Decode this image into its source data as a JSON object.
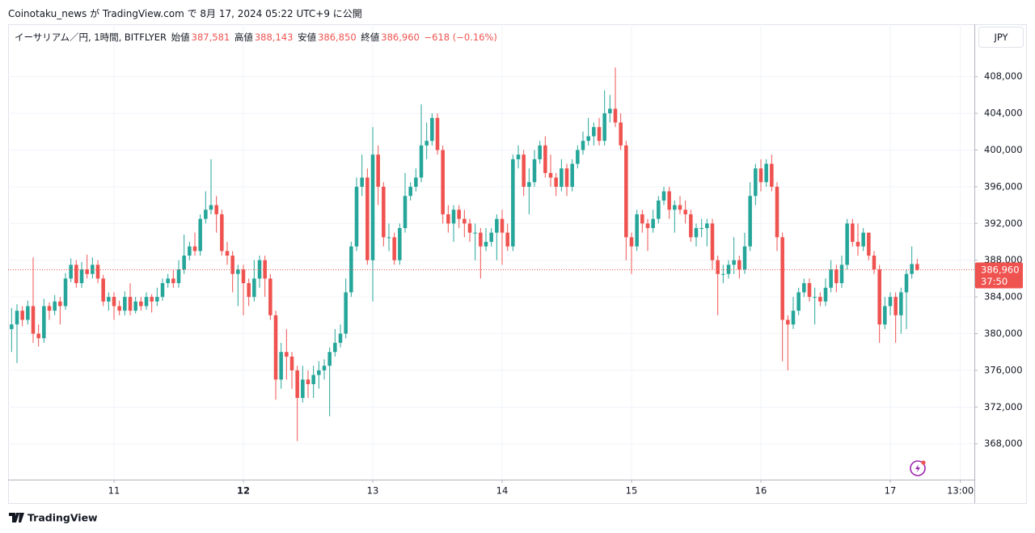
{
  "published": "Coinotaku_news が TradingView.com で 8月 17, 2024 05:22 UTC+9 に公開",
  "brand": "TradingView",
  "chart_data": {
    "type": "candlestick",
    "legend": {
      "symbol": "イーサリアム／円, 1時間, BITFLYER",
      "items": [
        {
          "label": "始値",
          "value": "387,581"
        },
        {
          "label": "高値",
          "value": "388,143"
        },
        {
          "label": "安値",
          "value": "386,850"
        },
        {
          "label": "終値",
          "value": "386,960"
        }
      ],
      "change": "−618 (−0.16%)"
    },
    "currency": "JPY",
    "last_price": 386960,
    "last_price_label": "386,960",
    "countdown": "37:50",
    "up_color": "#26a69a",
    "down_color": "#ef5350",
    "grid": true,
    "xlim": [
      4.35,
      183.6
    ],
    "xticks": [
      {
        "value": 24,
        "label": "11"
      },
      {
        "value": 48,
        "label": "12"
      },
      {
        "value": 72,
        "label": "13"
      },
      {
        "value": 96,
        "label": "14"
      },
      {
        "value": 120,
        "label": "15"
      },
      {
        "value": 144,
        "label": "16"
      },
      {
        "value": 168,
        "label": "17"
      },
      {
        "value": 181,
        "label": "13:00"
      }
    ],
    "ylim": [
      364100,
      413700
    ],
    "yticks": [
      {
        "value": 368000,
        "label": "368,000"
      },
      {
        "value": 372000,
        "label": "372,000"
      },
      {
        "value": 376000,
        "label": "376,000"
      },
      {
        "value": 380000,
        "label": "380,000"
      },
      {
        "value": 384000,
        "label": "384,000"
      },
      {
        "value": 388000,
        "label": "388,000"
      },
      {
        "value": 392000,
        "label": "392,000"
      },
      {
        "value": 396000,
        "label": "396,000"
      },
      {
        "value": 400000,
        "label": "400,000"
      },
      {
        "value": 404000,
        "label": "404,000"
      },
      {
        "value": 408000,
        "label": "408,000"
      }
    ],
    "x": [
      5,
      6,
      7,
      8,
      9,
      10,
      11,
      12,
      13,
      14,
      15,
      16,
      17,
      18,
      19,
      20,
      21,
      22,
      23,
      24,
      25,
      26,
      27,
      28,
      29,
      30,
      31,
      32,
      33,
      34,
      35,
      36,
      37,
      38,
      39,
      40,
      41,
      42,
      43,
      44,
      45,
      46,
      47,
      48,
      49,
      50,
      51,
      52,
      53,
      54,
      55,
      56,
      57,
      58,
      59,
      60,
      61,
      62,
      63,
      64,
      65,
      66,
      67,
      68,
      69,
      70,
      71,
      72,
      73,
      74,
      75,
      76,
      77,
      78,
      79,
      80,
      81,
      82,
      83,
      84,
      85,
      86,
      87,
      88,
      89,
      90,
      91,
      92,
      93,
      94,
      95,
      96,
      97,
      98,
      99,
      100,
      101,
      102,
      103,
      104,
      105,
      106,
      107,
      108,
      109,
      110,
      111,
      112,
      113,
      114,
      115,
      116,
      117,
      118,
      119,
      120,
      121,
      122,
      123,
      124,
      125,
      126,
      127,
      128,
      129,
      130,
      131,
      132,
      133,
      134,
      135,
      136,
      137,
      138,
      139,
      140,
      141,
      142,
      143,
      144,
      145,
      146,
      147,
      148,
      149,
      150,
      151,
      152,
      153,
      154,
      155,
      156,
      157,
      158,
      159,
      160,
      161,
      162,
      163,
      164,
      165,
      166,
      167,
      168,
      169,
      170,
      171,
      172,
      173
    ],
    "open": [
      380500,
      381000,
      382500,
      381500,
      383000,
      380000,
      379500,
      383000,
      382500,
      383500,
      383000,
      386000,
      387500,
      385500,
      387000,
      386500,
      387500,
      386000,
      383500,
      384000,
      383000,
      382500,
      384000,
      382500,
      383500,
      383000,
      384000,
      383500,
      384000,
      385500,
      386000,
      385500,
      387000,
      388500,
      389500,
      389000,
      392500,
      393500,
      394000,
      393000,
      389000,
      388500,
      386500,
      387000,
      385500,
      384000,
      386000,
      388000,
      386000,
      382000,
      375000,
      378000,
      377500,
      376000,
      373000,
      375000,
      374500,
      375500,
      376000,
      376500,
      378000,
      379000,
      380000,
      384500,
      389500,
      396000,
      397000,
      388000,
      399500,
      396000,
      390500,
      390500,
      388000,
      391500,
      395000,
      396000,
      397000,
      400500,
      401000,
      403500,
      400000,
      393000,
      392000,
      393500,
      392500,
      392000,
      391000,
      391000,
      389500,
      390000,
      391000,
      392500,
      391000,
      389500,
      399000,
      399500,
      396000,
      396500,
      399000,
      400500,
      397500,
      397000,
      396000,
      398000,
      396000,
      398500,
      400000,
      401000,
      401500,
      402500,
      401000,
      404000,
      404500,
      403000,
      400500,
      390500,
      389500,
      393000,
      392000,
      391500,
      392500,
      394500,
      395500,
      393500,
      394000,
      393500,
      393000,
      390500,
      391500,
      391500,
      392000,
      388000,
      386500,
      386500,
      387500,
      388000,
      387000,
      389500,
      395000,
      398000,
      396500,
      398500,
      396000,
      390500,
      381500,
      381000,
      382500,
      384500,
      385500,
      384000,
      384000,
      383500,
      385000,
      387000,
      385500,
      387500,
      392000,
      390000,
      389500,
      391000,
      388500,
      387000,
      381000,
      383000,
      384000,
      382000,
      384500,
      386500,
      387581
    ],
    "high": [
      382800,
      383200,
      383000,
      383600,
      388300,
      381000,
      383800,
      383400,
      384200,
      384000,
      386600,
      388200,
      388000,
      387800,
      388600,
      388300,
      388000,
      386400,
      384500,
      384500,
      383600,
      384600,
      385500,
      384000,
      384000,
      384500,
      384300,
      385000,
      386000,
      386500,
      387000,
      388000,
      390800,
      390000,
      391000,
      393000,
      395500,
      399000,
      395000,
      393500,
      390000,
      389000,
      387500,
      387500,
      386000,
      388000,
      388500,
      388500,
      386500,
      382500,
      379000,
      380500,
      378000,
      376500,
      376500,
      376000,
      376500,
      377000,
      377200,
      378500,
      380500,
      381000,
      386000,
      390000,
      397000,
      399500,
      398000,
      402500,
      400500,
      396500,
      392000,
      391000,
      392000,
      397500,
      396500,
      398000,
      405000,
      403000,
      404000,
      404000,
      400500,
      394000,
      394000,
      394000,
      393500,
      392500,
      392000,
      391500,
      391500,
      391500,
      393000,
      393500,
      392000,
      399500,
      400500,
      400000,
      398000,
      400000,
      401000,
      401500,
      399500,
      397500,
      399000,
      398500,
      399000,
      400500,
      402000,
      403500,
      403000,
      403500,
      406500,
      406000,
      409000,
      404000,
      401000,
      391000,
      393500,
      393500,
      392500,
      393500,
      395000,
      396000,
      396000,
      394500,
      395000,
      394500,
      393500,
      392000,
      392500,
      392500,
      392500,
      388500,
      387500,
      388000,
      390500,
      388500,
      391000,
      396500,
      398500,
      399000,
      399000,
      399500,
      396500,
      391000,
      382000,
      384000,
      385000,
      386000,
      386000,
      385000,
      384500,
      386000,
      388000,
      387500,
      388500,
      392500,
      392500,
      392000,
      391500,
      391000,
      389000,
      387500,
      384000,
      384500,
      384500,
      385000,
      387000,
      389500,
      388143
    ],
    "low": [
      378000,
      376800,
      380800,
      381000,
      379000,
      378600,
      379000,
      381500,
      382000,
      381000,
      382600,
      385600,
      385000,
      385000,
      386000,
      386000,
      385500,
      383000,
      382500,
      381500,
      382000,
      382000,
      382000,
      382200,
      382500,
      382600,
      382300,
      383000,
      383600,
      385000,
      385000,
      385000,
      386500,
      388000,
      388500,
      388500,
      392000,
      393000,
      391000,
      388500,
      387500,
      384500,
      383000,
      382000,
      383000,
      383500,
      385000,
      384000,
      381500,
      372800,
      374000,
      375000,
      374000,
      368300,
      372500,
      373000,
      373000,
      374000,
      375000,
      371000,
      377500,
      378500,
      379500,
      384000,
      389000,
      395000,
      387500,
      383500,
      394000,
      389500,
      389000,
      387500,
      387500,
      391000,
      394500,
      395500,
      396500,
      399000,
      400500,
      399500,
      392000,
      391000,
      390000,
      391500,
      390500,
      390000,
      388000,
      386000,
      389000,
      389500,
      388000,
      387500,
      389000,
      389000,
      398000,
      395000,
      393000,
      396000,
      398500,
      397000,
      396000,
      395000,
      395500,
      395000,
      395500,
      398000,
      399500,
      400500,
      400500,
      400500,
      400500,
      403000,
      402500,
      400000,
      388000,
      386500,
      389000,
      391000,
      389000,
      391000,
      392000,
      394000,
      392500,
      391000,
      393000,
      392000,
      390000,
      389500,
      390500,
      389500,
      387000,
      382000,
      385500,
      386000,
      386500,
      386000,
      386500,
      389000,
      394000,
      395500,
      396000,
      395500,
      389000,
      377000,
      376000,
      380500,
      382000,
      384000,
      383500,
      381000,
      383000,
      383000,
      384500,
      384500,
      385000,
      387000,
      389500,
      388500,
      389000,
      388000,
      386500,
      379000,
      380500,
      382000,
      379000,
      380000,
      380500,
      386000,
      386850
    ],
    "close": [
      381000,
      382500,
      381500,
      383000,
      380000,
      379500,
      383000,
      382500,
      383500,
      383000,
      386000,
      387500,
      385500,
      387000,
      386500,
      387500,
      386000,
      383500,
      384000,
      383000,
      382500,
      384000,
      382500,
      383500,
      383000,
      384000,
      383500,
      384000,
      385500,
      386000,
      385500,
      387000,
      388500,
      389500,
      389000,
      392500,
      393500,
      394000,
      393000,
      389000,
      388500,
      386500,
      387000,
      385500,
      384000,
      386000,
      388000,
      386000,
      382000,
      375000,
      378000,
      377500,
      376000,
      373000,
      375000,
      374500,
      375500,
      376000,
      376500,
      378000,
      379000,
      380000,
      384500,
      389500,
      396000,
      397000,
      388000,
      399500,
      396000,
      390500,
      390500,
      388000,
      391500,
      395000,
      396000,
      397000,
      400500,
      401000,
      403500,
      400000,
      393000,
      392000,
      393500,
      392500,
      392000,
      391000,
      391000,
      389500,
      390000,
      391000,
      392500,
      391000,
      389500,
      399000,
      399500,
      396000,
      396500,
      399000,
      400500,
      397500,
      397000,
      396000,
      398000,
      396000,
      398500,
      400000,
      401000,
      401500,
      402500,
      401000,
      404000,
      404500,
      403000,
      400500,
      390500,
      389500,
      393000,
      392000,
      391500,
      392500,
      394500,
      395500,
      393500,
      394000,
      393500,
      393000,
      390500,
      391500,
      391500,
      392000,
      388000,
      386500,
      386500,
      387500,
      388000,
      387000,
      389500,
      395000,
      398000,
      396500,
      398500,
      396000,
      390500,
      381500,
      381000,
      382500,
      384500,
      385500,
      384000,
      384000,
      383500,
      385000,
      387000,
      385500,
      387500,
      392000,
      390000,
      389500,
      391000,
      388500,
      387000,
      381000,
      383000,
      384000,
      382000,
      384500,
      386500,
      387581,
      386960
    ]
  }
}
